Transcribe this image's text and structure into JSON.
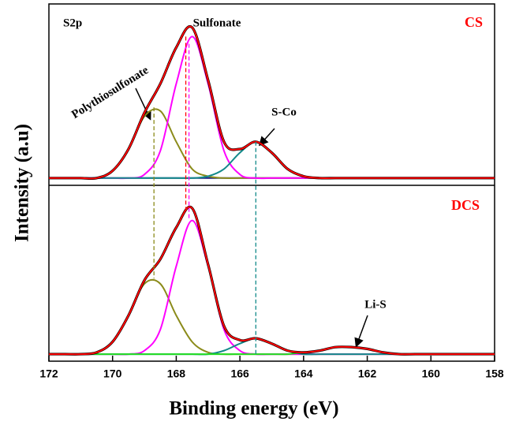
{
  "chart_data": {
    "type": "line",
    "xlabel": "Binding energy (eV)",
    "ylabel": "Intensity (a.u)",
    "corner_label": "S2p",
    "x": [
      172,
      171.5,
      171,
      170.5,
      170,
      169.5,
      169,
      168.5,
      168,
      167.5,
      167,
      166.5,
      166,
      165.5,
      165,
      164.5,
      164,
      163.5,
      163,
      162.5,
      162,
      161.5,
      161,
      160.5,
      160,
      159.5,
      159,
      158.5,
      158
    ],
    "xlim": [
      172,
      158
    ],
    "xticks": [
      172,
      170,
      168,
      166,
      164,
      162,
      160,
      158
    ],
    "panels": [
      {
        "label": "CS",
        "ylim": [
          0,
          100
        ],
        "annotations": [
          "Sulfonate",
          "Polythiosulfonate",
          "S-Co"
        ],
        "series": [
          {
            "color": "#1a1a80",
            "values": [
              4,
              4,
              4,
              4,
              4,
              4,
              4,
              4,
              4,
              4,
              4,
              4,
              4,
              4,
              4,
              4,
              4,
              4,
              4,
              4,
              4,
              4,
              4,
              4,
              4,
              4,
              4,
              4,
              4
            ]
          },
          {
            "color": "#8b8b1a",
            "values": [
              4,
              4,
              4,
              4,
              8,
              20,
              38,
              41,
              24,
              9,
              5,
              4,
              4,
              4,
              4,
              4,
              4,
              4,
              4,
              4,
              4,
              4,
              4,
              4,
              4,
              4,
              4,
              4,
              4
            ]
          },
          {
            "color": "#ff00ff",
            "values": [
              4,
              4,
              4,
              4,
              4,
              4,
              6,
              19,
              56,
              82,
              56,
              19,
              6,
              4,
              4,
              4,
              4,
              4,
              4,
              4,
              4,
              4,
              4,
              4,
              4,
              4,
              4,
              4,
              4
            ]
          },
          {
            "color": "#138a8a",
            "values": [
              4,
              4,
              4,
              4,
              4,
              4,
              4,
              4,
              4,
              4,
              5,
              9,
              18,
              24,
              18,
              9,
              5,
              4,
              4,
              4,
              4,
              4,
              4,
              4,
              4,
              4,
              4,
              4,
              4
            ]
          },
          {
            "color": "#ff0000",
            "raw": true,
            "values": [
              4,
              4,
              4,
              4,
              8,
              20,
              40,
              56,
              76,
              87,
              58,
              24,
              20,
              24,
              18,
              9,
              5,
              4,
              4,
              4,
              4,
              4,
              4,
              4,
              4,
              4,
              4,
              4,
              4
            ]
          }
        ]
      },
      {
        "label": "DCS",
        "ylim": [
          0,
          100
        ],
        "annotations": [
          "Li-S"
        ],
        "series": [
          {
            "color": "#8b8b1a",
            "values": [
              4,
              4,
              4,
              5,
              11,
              26,
              44,
              44,
              26,
              11,
              5,
              4,
              4,
              4,
              4,
              4,
              4,
              4,
              4,
              4,
              4,
              4,
              4,
              4,
              4,
              4,
              4,
              4,
              4
            ]
          },
          {
            "color": "#ff00ff",
            "values": [
              4,
              4,
              4,
              4,
              4,
              4,
              6,
              18,
              54,
              80,
              54,
              18,
              6,
              4,
              4,
              4,
              4,
              4,
              4,
              4,
              4,
              4,
              4,
              4,
              4,
              4,
              4,
              4,
              4
            ]
          },
          {
            "color": "#138a8a",
            "values": [
              4,
              4,
              4,
              4,
              4,
              4,
              4,
              4,
              4,
              4,
              4,
              6,
              10,
              13,
              10,
              6,
              4,
              4,
              4,
              4,
              4,
              4,
              4,
              4,
              4,
              4,
              4,
              4,
              4
            ]
          },
          {
            "color": "#22dd22",
            "values": [
              4,
              4,
              4,
              4,
              4,
              4,
              4,
              4,
              4,
              4,
              4,
              4,
              4,
              4,
              4,
              4,
              5,
              6,
              8,
              8,
              7,
              5,
              4,
              4,
              4,
              4,
              4,
              4,
              4
            ]
          },
          {
            "color": "#ff0000",
            "raw": true,
            "values": [
              4,
              4,
              4,
              5,
              11,
              26,
              46,
              58,
              76,
              87,
              55,
              20,
              12,
              13,
              10,
              6,
              5,
              6,
              8,
              8,
              7,
              5,
              4,
              4,
              4,
              4,
              4,
              4,
              4
            ]
          }
        ]
      }
    ],
    "guides": [
      {
        "x": 168.7,
        "color": "#8b8b1a",
        "top": 43,
        "bottom": 47
      },
      {
        "x": 167.6,
        "color": "#ff00ff",
        "top": 78,
        "bottom": 80
      },
      {
        "x": 167.7,
        "color": "#ff0000",
        "top": 82,
        "bottom": 85
      },
      {
        "x": 165.5,
        "color": "#138a8a",
        "top": 24,
        "bottom": 4
      }
    ]
  }
}
